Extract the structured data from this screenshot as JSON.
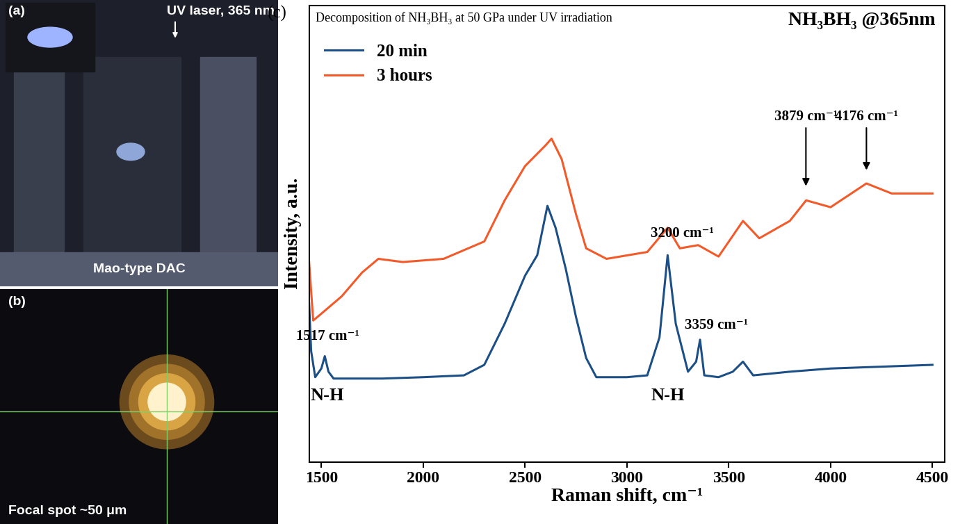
{
  "chart_data": {
    "type": "line",
    "panel_label": "(c)",
    "title": "Decomposition of NH₃BH₃ at 50 GPa under UV irradiation",
    "subtitle": "NH₃BH₃ @365nm",
    "x_label": "Raman shift, cm⁻¹",
    "y_label": "Intensity, a.u.",
    "xlim": [
      1440,
      4560
    ],
    "xticks": [
      1500,
      2000,
      2500,
      3000,
      3500,
      4000,
      4500
    ],
    "ylim": [
      0,
      100
    ],
    "yticks": [],
    "tick_labels": "x",
    "legend": "upper left",
    "grid": false,
    "series": [
      {
        "name": "20 min",
        "color": "#1c4f86",
        "x": [
          1440,
          1450,
          1470,
          1500,
          1517,
          1535,
          1560,
          1800,
          2000,
          2200,
          2300,
          2400,
          2500,
          2560,
          2610,
          2650,
          2700,
          2750,
          2800,
          2850,
          3000,
          3100,
          3160,
          3200,
          3240,
          3300,
          3340,
          3359,
          3380,
          3450,
          3520,
          3570,
          3620,
          3800,
          4000,
          4500
        ],
        "values": [
          34.8,
          24.3,
          18.6,
          20.5,
          23.2,
          19.8,
          18.3,
          18.3,
          18.6,
          19.0,
          21.3,
          30.3,
          40.8,
          45.3,
          56.1,
          51.3,
          42.3,
          31.8,
          22.8,
          18.6,
          18.6,
          19.0,
          27.3,
          45.3,
          30.3,
          19.8,
          22.0,
          26.8,
          19.0,
          18.6,
          19.8,
          22.0,
          19.0,
          19.8,
          20.5,
          21.3
        ]
      },
      {
        "name": "3 hours",
        "color": "#f25a2a",
        "x": [
          1440,
          1460,
          1500,
          1600,
          1700,
          1780,
          1900,
          2100,
          2300,
          2400,
          2500,
          2600,
          2630,
          2680,
          2750,
          2800,
          2900,
          3100,
          3200,
          3260,
          3350,
          3450,
          3570,
          3650,
          3800,
          3880,
          4000,
          4176,
          4300,
          4500
        ],
        "values": [
          43.8,
          31.0,
          32.5,
          36.3,
          41.5,
          44.5,
          43.8,
          44.5,
          48.3,
          57.3,
          64.8,
          69.3,
          70.8,
          66.3,
          54.3,
          46.8,
          44.5,
          46.0,
          51.3,
          46.8,
          47.5,
          45.0,
          52.8,
          49.0,
          52.8,
          57.3,
          55.8,
          61.0,
          58.8,
          58.8
        ]
      }
    ],
    "annotations": [
      {
        "text": "1517 cm⁻¹",
        "x": 1530,
        "y": 27.5
      },
      {
        "text": "N-H",
        "x": 1530,
        "y": 14.5
      },
      {
        "text": "3200 cm⁻¹",
        "x": 3270,
        "y": 50
      },
      {
        "text": "3359 cm⁻¹",
        "x": 3440,
        "y": 30
      },
      {
        "text": "N-H",
        "x": 3200,
        "y": 14.5
      },
      {
        "text": "3879 cm⁻¹",
        "x": 3879,
        "y": 74,
        "arrow_to": 60
      },
      {
        "text": "4176 cm⁻¹",
        "x": 4176,
        "y": 74,
        "arrow_to": 63.5
      }
    ]
  },
  "photos": [
    {
      "label": "(a)",
      "texts": [
        "UV laser, 365 nm",
        "Mao-type DAC"
      ]
    },
    {
      "label": "(b)",
      "texts": [
        "Focal spot ~50 μm"
      ]
    }
  ]
}
